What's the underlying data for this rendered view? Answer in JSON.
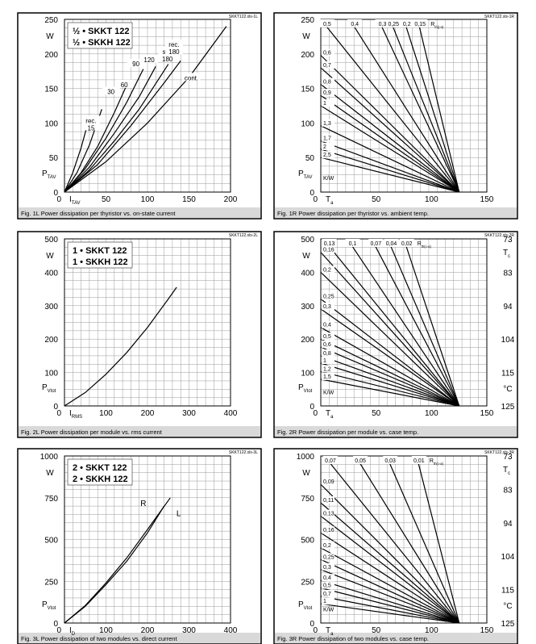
{
  "panels": [
    {
      "id": "1L",
      "file_tag": "SKKT122.xls-1L",
      "caption": "Fig. 1L Power dissipation per thyristor vs. on-state current",
      "legend": [
        "½ • SKKT 122",
        "½ • SKKH 122"
      ],
      "y_unit": "W",
      "y_label": "P",
      "y_label_sub": "TAV",
      "x_label": "I",
      "x_label_sub": "TAV",
      "x_unit": "A",
      "x_ticks": [
        0,
        50,
        100,
        150,
        200
      ],
      "y_ticks": [
        0,
        50,
        100,
        150,
        200,
        250
      ],
      "curve_labels": [
        "rec. 15",
        "30",
        "60",
        "90",
        "120",
        "sin. 180",
        "rec. 180",
        "cont."
      ]
    },
    {
      "id": "1R",
      "file_tag": "SKKT122.xls-1R",
      "caption": "Fig. 1R Power dissipation per thyristor vs. ambient temp.",
      "y_unit": "W",
      "y_label": "P",
      "y_label_sub": "TAV",
      "x_label": "T",
      "x_label_sub": "a",
      "x_unit": "°C",
      "x_ticks": [
        0,
        50,
        100,
        150
      ],
      "y_ticks": [
        0,
        50,
        100,
        150,
        200,
        250
      ],
      "r_label": "R",
      "r_label_sub": "th(j-a)",
      "r_unit": "K/W",
      "top_labels": [
        "0,5",
        "0,4",
        "0,3",
        "0,25",
        "0,2",
        "0,15"
      ],
      "left_labels": [
        "0,6",
        "0,7",
        "0,8",
        "0,9",
        "1",
        "1,3",
        "1,7",
        "2",
        "2,5"
      ]
    },
    {
      "id": "2L",
      "file_tag": "SKKT122.xls-2L",
      "caption": "Fig. 2L Power dissipation per module vs. rms current",
      "legend": [
        "1 • SKKT 122",
        "1 • SKKH 122"
      ],
      "y_unit": "W",
      "y_label": "P",
      "y_label_sub": "Vtot",
      "x_label": "I",
      "x_label_sub": "RMS",
      "x_unit": "A",
      "x_ticks": [
        0,
        100,
        200,
        300,
        400
      ],
      "y_ticks": [
        0,
        100,
        200,
        300,
        400,
        500
      ]
    },
    {
      "id": "2R",
      "file_tag": "SKKT122.xls-2R",
      "caption": "Fig. 2R Power dissipation per module vs. case temp.",
      "y_unit": "W",
      "y_label": "P",
      "y_label_sub": "Vtot",
      "x_label": "T",
      "x_label_sub": "a",
      "x_unit": "°C",
      "x_ticks": [
        0,
        50,
        100,
        150
      ],
      "y_ticks": [
        0,
        100,
        200,
        300,
        400,
        500
      ],
      "r_label": "R",
      "r_label_sub": "th(c-a)",
      "r_unit": "K/W",
      "right_axis_label": "T",
      "right_axis_sub": "c",
      "right_axis_unit": "°C",
      "right_ticks": [
        "73",
        "83",
        "94",
        "104",
        "115",
        "125"
      ],
      "top_labels": [
        "0,13",
        "0,1",
        "0,07",
        "0,04",
        "0,02"
      ],
      "left_labels": [
        "0,16",
        "0,2",
        "0,25",
        "0,3",
        "0,4",
        "0,5",
        "0,6",
        "0,8",
        "1",
        "1,2",
        "1,5"
      ]
    },
    {
      "id": "3L",
      "file_tag": "SKKT122.xls-3L",
      "caption": "Fig. 3L Power dissipation of two modules vs. direct current",
      "legend": [
        "2 • SKKT 122",
        "2 • SKKH 122"
      ],
      "y_unit": "W",
      "y_label": "P",
      "y_label_sub": "Vtot",
      "x_label": "I",
      "x_label_sub": "D",
      "x_unit": "A",
      "x_ticks": [
        0,
        100,
        200,
        300,
        400
      ],
      "y_ticks": [
        0,
        250,
        500,
        750,
        1000
      ],
      "curve_labels": [
        "R",
        "L"
      ]
    },
    {
      "id": "3R",
      "file_tag": "SKKT122.xls-3R",
      "caption": "Fig. 3R Power dissipation of two modules vs. case temp.",
      "y_unit": "W",
      "y_label": "P",
      "y_label_sub": "Vtot",
      "x_label": "T",
      "x_label_sub": "a",
      "x_unit": "°C",
      "x_ticks": [
        0,
        50,
        100,
        150
      ],
      "y_ticks": [
        0,
        250,
        500,
        750,
        1000
      ],
      "r_label": "R",
      "r_label_sub": "th(c-a)",
      "r_unit": "K/W",
      "right_axis_label": "T",
      "right_axis_sub": "c",
      "right_axis_unit": "°C",
      "right_ticks": [
        "73",
        "83",
        "94",
        "104",
        "115",
        "125"
      ],
      "top_labels": [
        "0,07",
        "0,05",
        "0,03",
        "0,01"
      ],
      "left_labels": [
        "0,09",
        "0,11",
        "0,13",
        "0,16",
        "0,2",
        "0,25",
        "0,3",
        "0,4",
        "0,5",
        "0,7",
        "1"
      ]
    }
  ],
  "chart_data": [
    {
      "type": "line",
      "title": "Fig. 1L Power dissipation per thyristor vs. on-state current",
      "xlabel": "ITAV (A)",
      "ylabel": "PTAV (W)",
      "xlim": [
        0,
        200
      ],
      "ylim": [
        0,
        250
      ],
      "grid": true,
      "series": [
        {
          "name": "rec. 15",
          "x": [
            0,
            10,
            20,
            30
          ],
          "y": [
            0,
            28,
            64,
            108
          ]
        },
        {
          "name": "30",
          "x": [
            0,
            15,
            30,
            45
          ],
          "y": [
            0,
            28,
            68,
            120
          ]
        },
        {
          "name": "60",
          "x": [
            0,
            20,
            40,
            60,
            75
          ],
          "y": [
            0,
            28,
            66,
            115,
            155
          ]
        },
        {
          "name": "90",
          "x": [
            0,
            25,
            50,
            75,
            95
          ],
          "y": [
            0,
            34,
            78,
            130,
            178
          ]
        },
        {
          "name": "120",
          "x": [
            0,
            30,
            60,
            90,
            110
          ],
          "y": [
            0,
            36,
            85,
            138,
            182
          ]
        },
        {
          "name": "sin. 180",
          "x": [
            0,
            30,
            60,
            90,
            125
          ],
          "y": [
            0,
            32,
            74,
            120,
            185
          ]
        },
        {
          "name": "rec. 180",
          "x": [
            0,
            40,
            80,
            120,
            140
          ],
          "y": [
            0,
            40,
            96,
            158,
            190
          ]
        },
        {
          "name": "cont.",
          "x": [
            0,
            50,
            100,
            150,
            195
          ],
          "y": [
            0,
            44,
            100,
            166,
            240
          ]
        }
      ]
    },
    {
      "type": "line",
      "title": "Fig. 1R Power dissipation per thyristor vs. ambient temp.",
      "xlabel": "Ta (°C)",
      "ylabel": "PTAV (W)",
      "xlim": [
        0,
        150
      ],
      "ylim": [
        0,
        250
      ],
      "grid": true,
      "series": [
        {
          "name": "0,5",
          "x": [
            5,
            125
          ],
          "y": [
            240,
            0
          ]
        },
        {
          "name": "0,4",
          "x": [
            30,
            125
          ],
          "y": [
            240,
            0
          ]
        },
        {
          "name": "0,3",
          "x": [
            55,
            125
          ],
          "y": [
            240,
            0
          ]
        },
        {
          "name": "0,25",
          "x": [
            65,
            125
          ],
          "y": [
            240,
            0
          ]
        },
        {
          "name": "0,2",
          "x": [
            77,
            125
          ],
          "y": [
            240,
            0
          ]
        },
        {
          "name": "0,15",
          "x": [
            89,
            125
          ],
          "y": [
            240,
            0
          ]
        },
        {
          "name": "0,6",
          "x": [
            0,
            125
          ],
          "y": [
            198,
            0
          ]
        },
        {
          "name": "0,7",
          "x": [
            0,
            125
          ],
          "y": [
            180,
            0
          ]
        },
        {
          "name": "0,8",
          "x": [
            0,
            125
          ],
          "y": [
            156,
            0
          ]
        },
        {
          "name": "0,9",
          "x": [
            0,
            125
          ],
          "y": [
            140,
            0
          ]
        },
        {
          "name": "1",
          "x": [
            0,
            125
          ],
          "y": [
            125,
            0
          ]
        },
        {
          "name": "1,3",
          "x": [
            0,
            125
          ],
          "y": [
            96,
            0
          ]
        },
        {
          "name": "1,7",
          "x": [
            0,
            125
          ],
          "y": [
            74,
            0
          ]
        },
        {
          "name": "2",
          "x": [
            0,
            125
          ],
          "y": [
            62,
            0
          ]
        },
        {
          "name": "2,5",
          "x": [
            0,
            125
          ],
          "y": [
            50,
            0
          ]
        }
      ]
    },
    {
      "type": "line",
      "title": "Fig. 2L Power dissipation per module vs. rms current",
      "xlabel": "IRMS (A)",
      "ylabel": "PVtot (W)",
      "xlim": [
        0,
        400
      ],
      "ylim": [
        0,
        500
      ],
      "grid": true,
      "series": [
        {
          "x": [
            0,
            50,
            100,
            150,
            200,
            250,
            270
          ],
          "y": [
            0,
            40,
            95,
            160,
            235,
            320,
            355
          ]
        }
      ]
    },
    {
      "type": "line",
      "title": "Fig. 2R Power dissipation per module vs. case temp.",
      "xlabel": "Ta (°C)",
      "ylabel": "PVtot (W)",
      "xlim": [
        0,
        150
      ],
      "ylim": [
        0,
        500
      ],
      "grid": true,
      "series": [
        {
          "name": "0,13",
          "x": [
            7,
            125
          ],
          "y": [
            480,
            0
          ]
        },
        {
          "name": "0,1",
          "x": [
            28,
            125
          ],
          "y": [
            480,
            0
          ]
        },
        {
          "name": "0,07",
          "x": [
            49,
            125
          ],
          "y": [
            480,
            0
          ]
        },
        {
          "name": "0,04",
          "x": [
            63,
            125
          ],
          "y": [
            480,
            0
          ]
        },
        {
          "name": "0,02",
          "x": [
            77,
            125
          ],
          "y": [
            480,
            0
          ]
        },
        {
          "name": "0,16",
          "x": [
            0,
            125
          ],
          "y": [
            460,
            0
          ]
        },
        {
          "name": "0,2",
          "x": [
            0,
            125
          ],
          "y": [
            400,
            0
          ]
        },
        {
          "name": "0,25",
          "x": [
            0,
            125
          ],
          "y": [
            320,
            0
          ]
        },
        {
          "name": "0,3",
          "x": [
            0,
            125
          ],
          "y": [
            290,
            0
          ]
        },
        {
          "name": "0,4",
          "x": [
            0,
            125
          ],
          "y": [
            235,
            0
          ]
        },
        {
          "name": "0,5",
          "x": [
            0,
            125
          ],
          "y": [
            200,
            0
          ]
        },
        {
          "name": "0,6",
          "x": [
            0,
            125
          ],
          "y": [
            176,
            0
          ]
        },
        {
          "name": "0,8",
          "x": [
            0,
            125
          ],
          "y": [
            150,
            0
          ]
        },
        {
          "name": "1",
          "x": [
            0,
            125
          ],
          "y": [
            128,
            0
          ]
        },
        {
          "name": "1,2",
          "x": [
            0,
            125
          ],
          "y": [
            103,
            0
          ]
        },
        {
          "name": "1,5",
          "x": [
            0,
            125
          ],
          "y": [
            80,
            0
          ]
        }
      ]
    },
    {
      "type": "line",
      "title": "Fig. 3L Power dissipation of two modules vs. direct current",
      "xlabel": "ID (A)",
      "ylabel": "PVtot (W)",
      "xlim": [
        0,
        400
      ],
      "ylim": [
        0,
        1000
      ],
      "grid": true,
      "series": [
        {
          "name": "R",
          "x": [
            0,
            50,
            100,
            150,
            200,
            240
          ],
          "y": [
            0,
            100,
            230,
            370,
            540,
            700
          ]
        },
        {
          "name": "L",
          "x": [
            0,
            50,
            100,
            150,
            200,
            255
          ],
          "y": [
            0,
            105,
            240,
            390,
            560,
            750
          ]
        }
      ]
    },
    {
      "type": "line",
      "title": "Fig. 3R Power dissipation of two modules vs. case temp.",
      "xlabel": "Ta (°C)",
      "ylabel": "PVtot (W)",
      "xlim": [
        0,
        150
      ],
      "ylim": [
        0,
        1000
      ],
      "grid": true,
      "series": [
        {
          "name": "0,07",
          "x": [
            8,
            125
          ],
          "y": [
            960,
            0
          ]
        },
        {
          "name": "0,05",
          "x": [
            35,
            125
          ],
          "y": [
            960,
            0
          ]
        },
        {
          "name": "0,03",
          "x": [
            62,
            125
          ],
          "y": [
            960,
            0
          ]
        },
        {
          "name": "0,01",
          "x": [
            88,
            125
          ],
          "y": [
            960,
            0
          ]
        },
        {
          "name": "0,09",
          "x": [
            0,
            125
          ],
          "y": [
            830,
            0
          ]
        },
        {
          "name": "0,11",
          "x": [
            0,
            125
          ],
          "y": [
            720,
            0
          ]
        },
        {
          "name": "0,13",
          "x": [
            0,
            125
          ],
          "y": [
            640,
            0
          ]
        },
        {
          "name": "0,16",
          "x": [
            0,
            125
          ],
          "y": [
            540,
            0
          ]
        },
        {
          "name": "0,2",
          "x": [
            0,
            125
          ],
          "y": [
            450,
            0
          ]
        },
        {
          "name": "0,25",
          "x": [
            0,
            125
          ],
          "y": [
            380,
            0
          ]
        },
        {
          "name": "0,3",
          "x": [
            0,
            125
          ],
          "y": [
            320,
            0
          ]
        },
        {
          "name": "0,4",
          "x": [
            0,
            125
          ],
          "y": [
            255,
            0
          ]
        },
        {
          "name": "0,5",
          "x": [
            0,
            125
          ],
          "y": [
            210,
            0
          ]
        },
        {
          "name": "0,7",
          "x": [
            0,
            125
          ],
          "y": [
            160,
            0
          ]
        },
        {
          "name": "1",
          "x": [
            0,
            125
          ],
          "y": [
            115,
            0
          ]
        }
      ]
    }
  ]
}
